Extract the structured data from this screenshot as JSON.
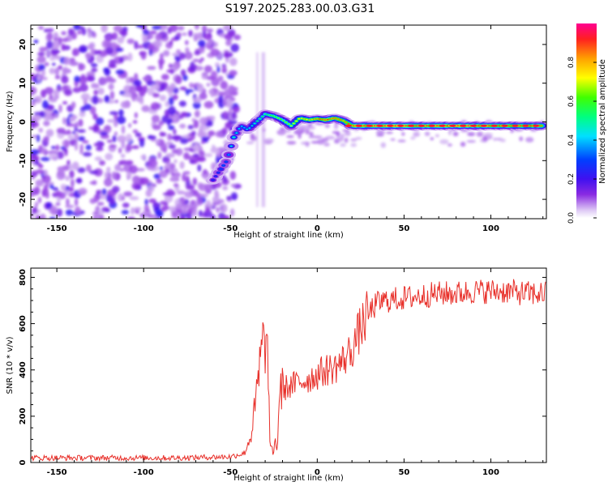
{
  "title": "S197.2025.283.00.03.G31",
  "chart_data": [
    {
      "type": "heatmap",
      "xlabel": "Height of straight line (km)",
      "ylabel": "Frequency (Hz)",
      "xlim": [
        -165,
        132
      ],
      "ylim": [
        -25,
        25
      ],
      "x_ticks": [
        -150,
        -100,
        -50,
        0,
        50,
        100
      ],
      "y_ticks": [
        -20,
        -10,
        0,
        10,
        20
      ],
      "colorbar": {
        "label": "Normalized spectral amplitude",
        "range": [
          0,
          1
        ],
        "ticks": [
          0.0,
          0.2,
          0.4,
          0.6,
          0.8
        ]
      },
      "noise_region_x": [
        -165,
        -50
      ],
      "frequency_track": {
        "x": [
          -60,
          -52,
          -48,
          -44,
          -40,
          -35,
          -30,
          -25,
          -20,
          -15,
          -10,
          -5,
          0,
          5,
          10,
          15,
          20,
          30,
          50,
          70,
          90,
          110,
          130
        ],
        "y": [
          -15,
          -10,
          -4,
          -1,
          -2,
          0,
          2,
          1.5,
          0.5,
          -1,
          1,
          0.5,
          0.8,
          0.5,
          1,
          0.3,
          -1,
          -1,
          -1,
          -1,
          -1,
          -1,
          -1
        ],
        "amplitude": [
          0.25,
          0.35,
          0.5,
          0.4,
          0.4,
          0.5,
          0.55,
          0.6,
          0.65,
          0.7,
          0.75,
          0.8,
          0.85,
          0.9,
          0.9,
          0.85,
          0.9,
          0.95,
          0.95,
          0.95,
          0.95,
          0.9,
          0.9
        ]
      }
    },
    {
      "type": "line",
      "xlabel": "Height of straight line (km)",
      "ylabel": "SNR (10 * v/v)",
      "xlim": [
        -165,
        132
      ],
      "ylim": [
        0,
        840
      ],
      "x_ticks": [
        -150,
        -100,
        -50,
        0,
        50,
        100
      ],
      "y_ticks": [
        0,
        200,
        400,
        600,
        800
      ],
      "color": "#e8302a",
      "series": [
        {
          "x": [
            -165,
            -120,
            -80,
            -50,
            -42,
            -38,
            -35,
            -33,
            -31,
            -30,
            -29,
            -28,
            -27,
            -25,
            -24,
            -23,
            -22,
            -20,
            -15,
            -10,
            -5,
            0,
            5,
            10,
            15,
            20,
            25,
            30,
            35,
            40,
            50,
            60,
            70,
            80,
            90,
            100,
            110,
            120,
            132
          ],
          "y": [
            20,
            20,
            20,
            25,
            40,
            120,
            280,
            420,
            500,
            560,
            500,
            300,
            60,
            40,
            120,
            30,
            300,
            320,
            330,
            350,
            360,
            380,
            400,
            410,
            440,
            490,
            580,
            650,
            690,
            700,
            710,
            720,
            730,
            730,
            740,
            740,
            740,
            730,
            730
          ]
        }
      ]
    }
  ]
}
